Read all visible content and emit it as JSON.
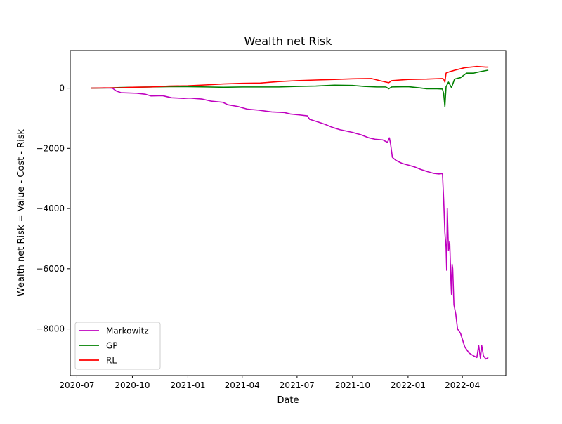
{
  "chart_data": {
    "type": "line",
    "title": "Wealth net Risk",
    "xlabel": "Date",
    "ylabel": "Wealth net Risk = Value - Cost - Risk",
    "x_range": [
      "2020-06-20",
      "2022-06-12"
    ],
    "ylim": [
      -9550,
      1250
    ],
    "x_ticks": [
      "2020-07",
      "2020-10",
      "2021-01",
      "2021-04",
      "2021-07",
      "2021-10",
      "2022-01",
      "2022-04"
    ],
    "x_tick_dates": [
      "2020-07-01",
      "2020-10-01",
      "2021-01-01",
      "2021-04-01",
      "2021-07-01",
      "2021-10-01",
      "2022-01-01",
      "2022-04-01"
    ],
    "y_ticks": [
      0,
      -2000,
      -4000,
      -6000,
      -8000
    ],
    "y_tick_labels": [
      "0",
      "−2000",
      "−4000",
      "−6000",
      "−8000"
    ],
    "grid": false,
    "legend_position": "lower-left",
    "series": [
      {
        "name": "Markowitz",
        "color": "#bf00bf",
        "points": [
          [
            "2020-07-24",
            0
          ],
          [
            "2020-08-15",
            10
          ],
          [
            "2020-08-29",
            0
          ],
          [
            "2020-09-04",
            -90
          ],
          [
            "2020-09-12",
            -150
          ],
          [
            "2020-10-08",
            -170
          ],
          [
            "2020-10-22",
            -200
          ],
          [
            "2020-11-01",
            -260
          ],
          [
            "2020-11-20",
            -250
          ],
          [
            "2020-12-05",
            -320
          ],
          [
            "2020-12-25",
            -340
          ],
          [
            "2021-01-04",
            -330
          ],
          [
            "2021-01-24",
            -360
          ],
          [
            "2021-02-08",
            -430
          ],
          [
            "2021-02-28",
            -470
          ],
          [
            "2021-03-08",
            -550
          ],
          [
            "2021-03-25",
            -610
          ],
          [
            "2021-04-10",
            -700
          ],
          [
            "2021-04-28",
            -730
          ],
          [
            "2021-05-20",
            -790
          ],
          [
            "2021-06-10",
            -810
          ],
          [
            "2021-06-20",
            -860
          ],
          [
            "2021-07-05",
            -890
          ],
          [
            "2021-07-18",
            -920
          ],
          [
            "2021-07-22",
            -1040
          ],
          [
            "2021-08-01",
            -1100
          ],
          [
            "2021-08-16",
            -1200
          ],
          [
            "2021-08-28",
            -1300
          ],
          [
            "2021-09-10",
            -1380
          ],
          [
            "2021-10-01",
            -1470
          ],
          [
            "2021-10-15",
            -1550
          ],
          [
            "2021-10-28",
            -1650
          ],
          [
            "2021-11-08",
            -1700
          ],
          [
            "2021-11-20",
            -1720
          ],
          [
            "2021-11-28",
            -1800
          ],
          [
            "2021-12-01",
            -1650
          ],
          [
            "2021-12-03",
            -1850
          ],
          [
            "2021-12-06",
            -2300
          ],
          [
            "2021-12-12",
            -2400
          ],
          [
            "2021-12-22",
            -2500
          ],
          [
            "2022-01-02",
            -2560
          ],
          [
            "2022-01-12",
            -2620
          ],
          [
            "2022-01-22",
            -2700
          ],
          [
            "2022-02-03",
            -2780
          ],
          [
            "2022-02-12",
            -2830
          ],
          [
            "2022-02-21",
            -2850
          ],
          [
            "2022-02-27",
            -2840
          ],
          [
            "2022-03-01",
            -3700
          ],
          [
            "2022-03-03",
            -4800
          ],
          [
            "2022-03-05",
            -5300
          ],
          [
            "2022-03-06",
            -6050
          ],
          [
            "2022-03-07",
            -4000
          ],
          [
            "2022-03-09",
            -5400
          ],
          [
            "2022-03-11",
            -5100
          ],
          [
            "2022-03-13",
            -6400
          ],
          [
            "2022-03-14",
            -6850
          ],
          [
            "2022-03-15",
            -5850
          ],
          [
            "2022-03-16",
            -6000
          ],
          [
            "2022-03-18",
            -7200
          ],
          [
            "2022-03-21",
            -7500
          ],
          [
            "2022-03-24",
            -8000
          ],
          [
            "2022-03-29",
            -8150
          ],
          [
            "2022-04-05",
            -8600
          ],
          [
            "2022-04-12",
            -8800
          ],
          [
            "2022-04-20",
            -8900
          ],
          [
            "2022-04-25",
            -8950
          ],
          [
            "2022-04-28",
            -8550
          ],
          [
            "2022-05-01",
            -8980
          ],
          [
            "2022-05-03",
            -8550
          ],
          [
            "2022-05-06",
            -8900
          ],
          [
            "2022-05-10",
            -9000
          ],
          [
            "2022-05-14",
            -8950
          ]
        ]
      },
      {
        "name": "GP",
        "color": "#008000",
        "points": [
          [
            "2020-07-24",
            0
          ],
          [
            "2020-08-20",
            5
          ],
          [
            "2020-09-10",
            20
          ],
          [
            "2020-10-01",
            30
          ],
          [
            "2020-11-01",
            40
          ],
          [
            "2020-12-01",
            50
          ],
          [
            "2021-01-01",
            50
          ],
          [
            "2021-02-01",
            40
          ],
          [
            "2021-03-01",
            30
          ],
          [
            "2021-04-01",
            40
          ],
          [
            "2021-05-01",
            40
          ],
          [
            "2021-06-01",
            40
          ],
          [
            "2021-07-01",
            60
          ],
          [
            "2021-08-01",
            70
          ],
          [
            "2021-09-01",
            100
          ],
          [
            "2021-10-01",
            90
          ],
          [
            "2021-10-20",
            60
          ],
          [
            "2021-11-10",
            40
          ],
          [
            "2021-11-25",
            40
          ],
          [
            "2021-11-30",
            -20
          ],
          [
            "2021-12-05",
            40
          ],
          [
            "2022-01-01",
            50
          ],
          [
            "2022-01-20",
            10
          ],
          [
            "2022-02-01",
            -20
          ],
          [
            "2022-02-18",
            -20
          ],
          [
            "2022-02-27",
            -30
          ],
          [
            "2022-03-01",
            -180
          ],
          [
            "2022-03-03",
            -610
          ],
          [
            "2022-03-05",
            50
          ],
          [
            "2022-03-09",
            200
          ],
          [
            "2022-03-14",
            20
          ],
          [
            "2022-03-19",
            300
          ],
          [
            "2022-03-29",
            350
          ],
          [
            "2022-04-08",
            500
          ],
          [
            "2022-04-20",
            500
          ],
          [
            "2022-05-01",
            550
          ],
          [
            "2022-05-14",
            600
          ]
        ]
      },
      {
        "name": "RL",
        "color": "#ff0000",
        "points": [
          [
            "2020-07-24",
            0
          ],
          [
            "2020-08-20",
            10
          ],
          [
            "2020-09-10",
            10
          ],
          [
            "2020-10-01",
            30
          ],
          [
            "2020-11-01",
            40
          ],
          [
            "2020-12-01",
            70
          ],
          [
            "2021-01-01",
            80
          ],
          [
            "2021-02-01",
            110
          ],
          [
            "2021-03-01",
            140
          ],
          [
            "2021-04-01",
            160
          ],
          [
            "2021-05-01",
            170
          ],
          [
            "2021-06-01",
            220
          ],
          [
            "2021-07-01",
            250
          ],
          [
            "2021-08-01",
            270
          ],
          [
            "2021-09-01",
            290
          ],
          [
            "2021-10-01",
            310
          ],
          [
            "2021-11-01",
            320
          ],
          [
            "2021-11-15",
            250
          ],
          [
            "2021-11-30",
            180
          ],
          [
            "2021-12-05",
            250
          ],
          [
            "2022-01-01",
            290
          ],
          [
            "2022-02-01",
            300
          ],
          [
            "2022-02-27",
            320
          ],
          [
            "2022-03-01",
            300
          ],
          [
            "2022-03-03",
            200
          ],
          [
            "2022-03-05",
            500
          ],
          [
            "2022-03-10",
            540
          ],
          [
            "2022-03-20",
            600
          ],
          [
            "2022-04-05",
            680
          ],
          [
            "2022-04-25",
            720
          ],
          [
            "2022-05-10",
            700
          ],
          [
            "2022-05-14",
            700
          ]
        ]
      }
    ]
  }
}
